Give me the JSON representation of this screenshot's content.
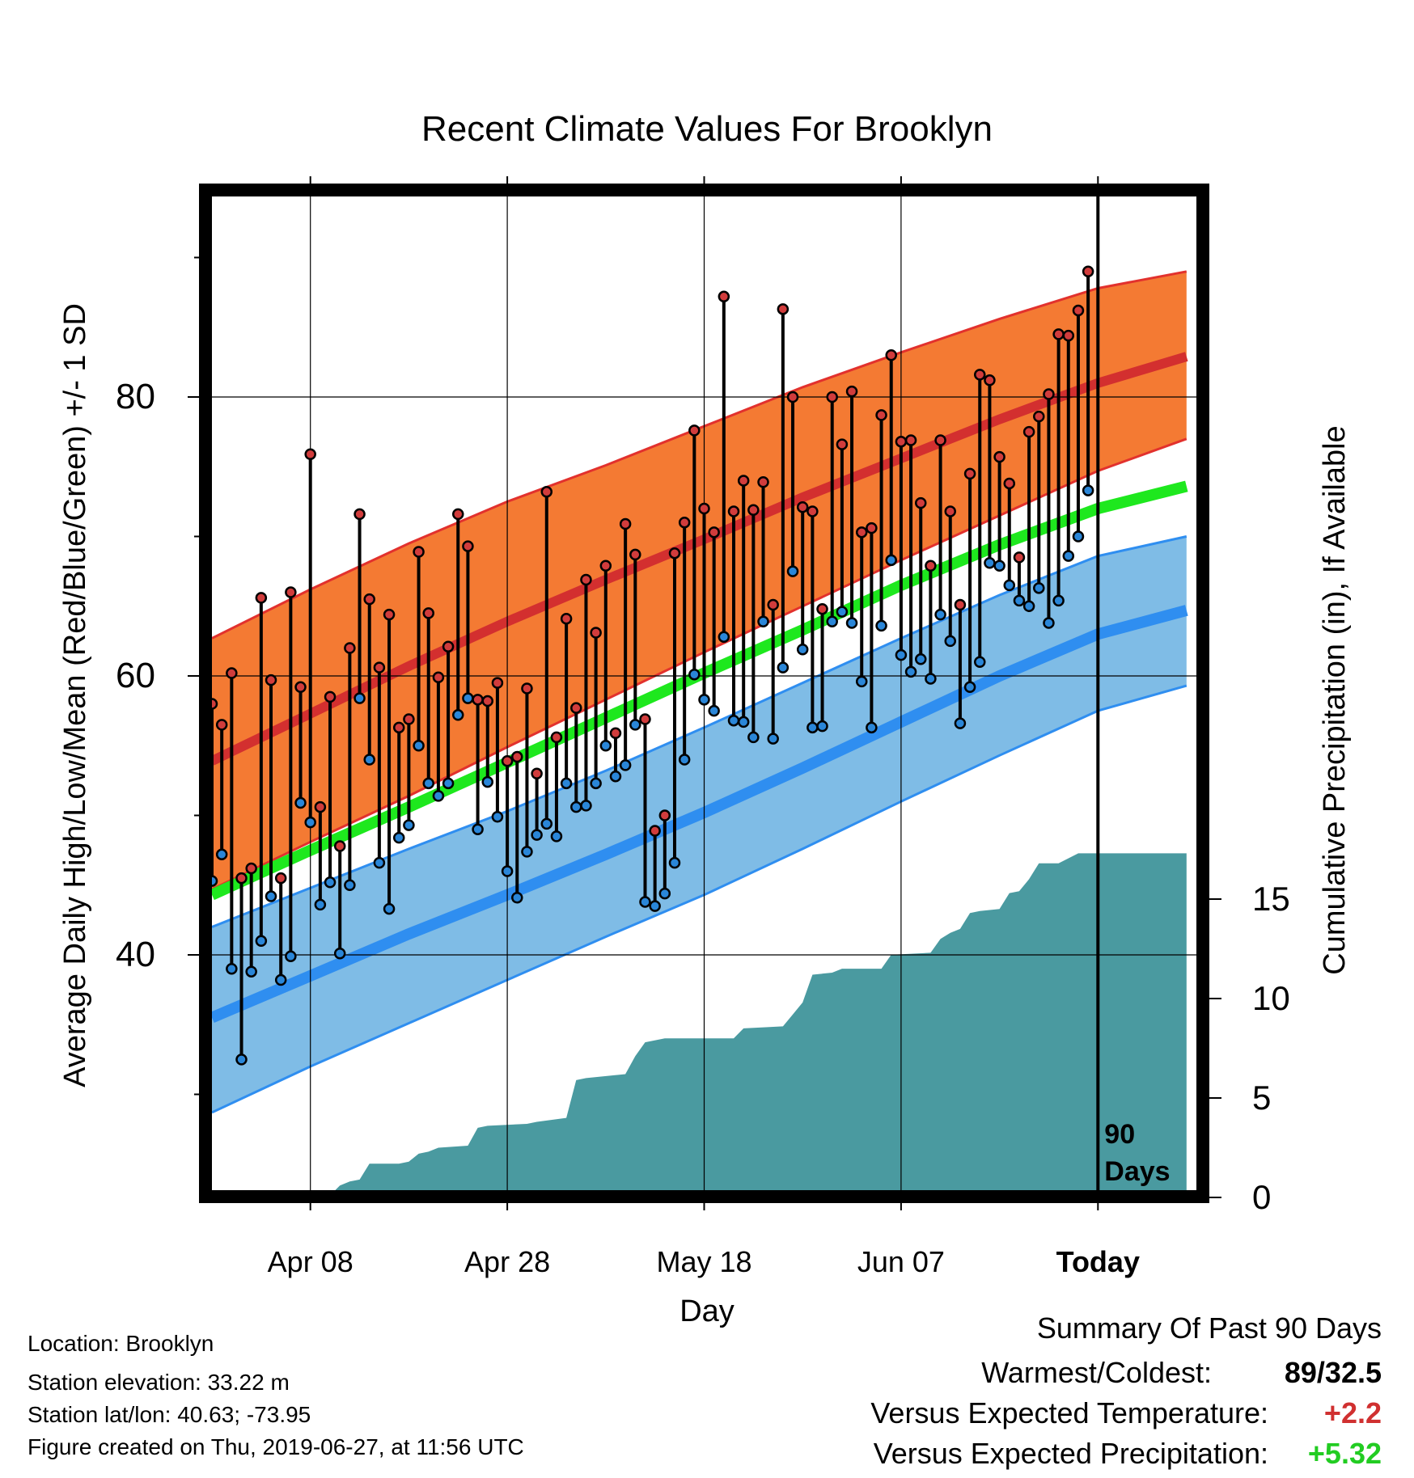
{
  "chart_data": {
    "type": "line",
    "title": "Recent Climate Values For Brooklyn",
    "xlabel": "Day",
    "ylabel": "Average Daily High/Low/Mean (Red/Blue/Green) +/- 1 SD",
    "y2label": "Cumulative Precipitation (in), If Available",
    "x_start_date": "2019-03-29",
    "x_end_date": "2019-06-27",
    "x_ticks": [
      {
        "date": "2019-04-08",
        "label": "Apr 08"
      },
      {
        "date": "2019-04-28",
        "label": "Apr 28"
      },
      {
        "date": "2019-05-18",
        "label": "May 18"
      },
      {
        "date": "2019-06-07",
        "label": "Jun 07"
      },
      {
        "date": "2019-06-27",
        "label": "Today"
      }
    ],
    "ylim": [
      23,
      96
    ],
    "y_ticks": [
      40,
      60,
      80
    ],
    "y2lim": [
      0,
      49.5
    ],
    "y2_ticks": [
      0,
      5,
      10,
      15
    ],
    "marker_label": [
      "90",
      "Days"
    ],
    "colors": {
      "high_band": "#f47a33",
      "high_band_edge": "#e2312d",
      "normal_high": "#d32f2f",
      "low_band": "#7fbce6",
      "low_band_edge": "#2f8ef0",
      "normal_low": "#2f8ef0",
      "normal_mean": "#1ee81e",
      "precip": "#4a9aa0",
      "high_dot": "#d13c3c",
      "low_dot": "#2a86d8"
    },
    "normal_high": [
      {
        "x": "2019-03-29",
        "y": 53.9
      },
      {
        "x": "2019-04-08",
        "y": 57.3
      },
      {
        "x": "2019-04-18",
        "y": 60.7
      },
      {
        "x": "2019-04-28",
        "y": 63.9
      },
      {
        "x": "2019-05-08",
        "y": 66.9
      },
      {
        "x": "2019-05-18",
        "y": 69.8
      },
      {
        "x": "2019-05-28",
        "y": 72.8
      },
      {
        "x": "2019-06-07",
        "y": 75.6
      },
      {
        "x": "2019-06-17",
        "y": 78.4
      },
      {
        "x": "2019-06-27",
        "y": 81.0
      },
      {
        "x": "2019-07-06",
        "y": 82.9
      }
    ],
    "high_sd_upper": [
      {
        "x": "2019-03-29",
        "y": 62.7
      },
      {
        "x": "2019-04-08",
        "y": 66.2
      },
      {
        "x": "2019-04-18",
        "y": 69.5
      },
      {
        "x": "2019-04-28",
        "y": 72.5
      },
      {
        "x": "2019-05-08",
        "y": 75.1
      },
      {
        "x": "2019-05-18",
        "y": 77.9
      },
      {
        "x": "2019-05-28",
        "y": 80.7
      },
      {
        "x": "2019-06-07",
        "y": 83.2
      },
      {
        "x": "2019-06-17",
        "y": 85.6
      },
      {
        "x": "2019-06-27",
        "y": 87.8
      },
      {
        "x": "2019-07-06",
        "y": 89.0
      }
    ],
    "high_sd_lower": [
      {
        "x": "2019-03-29",
        "y": 44.7
      },
      {
        "x": "2019-04-08",
        "y": 48.1
      },
      {
        "x": "2019-04-18",
        "y": 51.4
      },
      {
        "x": "2019-04-28",
        "y": 54.9
      },
      {
        "x": "2019-05-08",
        "y": 58.3
      },
      {
        "x": "2019-05-18",
        "y": 61.7
      },
      {
        "x": "2019-05-28",
        "y": 65.0
      },
      {
        "x": "2019-06-07",
        "y": 68.3
      },
      {
        "x": "2019-06-17",
        "y": 71.5
      },
      {
        "x": "2019-06-27",
        "y": 74.7
      },
      {
        "x": "2019-07-06",
        "y": 77.0
      }
    ],
    "normal_mean": [
      {
        "x": "2019-03-29",
        "y": 44.3
      },
      {
        "x": "2019-04-08",
        "y": 47.5
      },
      {
        "x": "2019-04-18",
        "y": 50.6
      },
      {
        "x": "2019-04-28",
        "y": 53.8
      },
      {
        "x": "2019-05-08",
        "y": 57.0
      },
      {
        "x": "2019-05-18",
        "y": 60.2
      },
      {
        "x": "2019-05-28",
        "y": 63.3
      },
      {
        "x": "2019-06-07",
        "y": 66.5
      },
      {
        "x": "2019-06-17",
        "y": 69.4
      },
      {
        "x": "2019-06-27",
        "y": 72.0
      },
      {
        "x": "2019-07-06",
        "y": 73.6
      }
    ],
    "normal_low": [
      {
        "x": "2019-03-29",
        "y": 35.5
      },
      {
        "x": "2019-04-08",
        "y": 38.5
      },
      {
        "x": "2019-04-18",
        "y": 41.5
      },
      {
        "x": "2019-04-28",
        "y": 44.3
      },
      {
        "x": "2019-05-08",
        "y": 47.2
      },
      {
        "x": "2019-05-18",
        "y": 50.2
      },
      {
        "x": "2019-05-28",
        "y": 53.4
      },
      {
        "x": "2019-06-07",
        "y": 56.7
      },
      {
        "x": "2019-06-17",
        "y": 60.0
      },
      {
        "x": "2019-06-27",
        "y": 63.0
      },
      {
        "x": "2019-07-06",
        "y": 64.7
      }
    ],
    "low_sd_upper": [
      {
        "x": "2019-03-29",
        "y": 42.0
      },
      {
        "x": "2019-04-08",
        "y": 44.8
      },
      {
        "x": "2019-04-18",
        "y": 47.6
      },
      {
        "x": "2019-04-28",
        "y": 50.3
      },
      {
        "x": "2019-05-08",
        "y": 53.2
      },
      {
        "x": "2019-05-18",
        "y": 56.3
      },
      {
        "x": "2019-05-28",
        "y": 59.5
      },
      {
        "x": "2019-06-07",
        "y": 62.7
      },
      {
        "x": "2019-06-17",
        "y": 65.8
      },
      {
        "x": "2019-06-27",
        "y": 68.6
      },
      {
        "x": "2019-07-06",
        "y": 70.0
      }
    ],
    "low_sd_lower": [
      {
        "x": "2019-03-29",
        "y": 28.7
      },
      {
        "x": "2019-04-08",
        "y": 32.0
      },
      {
        "x": "2019-04-18",
        "y": 35.1
      },
      {
        "x": "2019-04-28",
        "y": 38.2
      },
      {
        "x": "2019-05-08",
        "y": 41.3
      },
      {
        "x": "2019-05-18",
        "y": 44.3
      },
      {
        "x": "2019-05-28",
        "y": 47.6
      },
      {
        "x": "2019-06-07",
        "y": 51.0
      },
      {
        "x": "2019-06-17",
        "y": 54.3
      },
      {
        "x": "2019-06-27",
        "y": 57.5
      },
      {
        "x": "2019-07-06",
        "y": 59.3
      }
    ],
    "series": [
      {
        "name": "High",
        "x": [
          "2019-03-29",
          "2019-03-30",
          "2019-03-31",
          "2019-04-01",
          "2019-04-02",
          "2019-04-03",
          "2019-04-04",
          "2019-04-05",
          "2019-04-06",
          "2019-04-07",
          "2019-04-08",
          "2019-04-09",
          "2019-04-10",
          "2019-04-11",
          "2019-04-12",
          "2019-04-13",
          "2019-04-14",
          "2019-04-15",
          "2019-04-16",
          "2019-04-17",
          "2019-04-18",
          "2019-04-19",
          "2019-04-20",
          "2019-04-21",
          "2019-04-22",
          "2019-04-23",
          "2019-04-24",
          "2019-04-25",
          "2019-04-26",
          "2019-04-27",
          "2019-04-28",
          "2019-04-29",
          "2019-04-30",
          "2019-05-01",
          "2019-05-02",
          "2019-05-03",
          "2019-05-04",
          "2019-05-05",
          "2019-05-06",
          "2019-05-07",
          "2019-05-08",
          "2019-05-09",
          "2019-05-10",
          "2019-05-11",
          "2019-05-12",
          "2019-05-13",
          "2019-05-14",
          "2019-05-15",
          "2019-05-16",
          "2019-05-17",
          "2019-05-18",
          "2019-05-19",
          "2019-05-20",
          "2019-05-21",
          "2019-05-22",
          "2019-05-23",
          "2019-05-24",
          "2019-05-25",
          "2019-05-26",
          "2019-05-27",
          "2019-05-28",
          "2019-05-29",
          "2019-05-30",
          "2019-05-31",
          "2019-06-01",
          "2019-06-02",
          "2019-06-03",
          "2019-06-04",
          "2019-06-05",
          "2019-06-06",
          "2019-06-07",
          "2019-06-08",
          "2019-06-09",
          "2019-06-10",
          "2019-06-11",
          "2019-06-12",
          "2019-06-13",
          "2019-06-14",
          "2019-06-15",
          "2019-06-16",
          "2019-06-17",
          "2019-06-18",
          "2019-06-19",
          "2019-06-20",
          "2019-06-21",
          "2019-06-22",
          "2019-06-23",
          "2019-06-24",
          "2019-06-25",
          "2019-06-26"
        ],
        "values": [
          58.0,
          56.5,
          60.2,
          45.5,
          46.2,
          65.6,
          59.7,
          45.5,
          66.0,
          59.2,
          75.9,
          50.6,
          58.5,
          47.8,
          62.0,
          71.6,
          65.5,
          60.6,
          64.4,
          56.3,
          56.9,
          68.9,
          64.5,
          59.9,
          62.1,
          71.6,
          69.3,
          58.3,
          58.2,
          59.5,
          53.9,
          54.2,
          59.1,
          53.0,
          73.2,
          55.6,
          64.1,
          57.7,
          66.9,
          63.1,
          67.9,
          55.9,
          70.9,
          68.7,
          56.9,
          48.9,
          50.0,
          68.8,
          71.0,
          77.6,
          72.0,
          70.3,
          87.2,
          71.8,
          74.0,
          71.9,
          73.9,
          65.1,
          86.3,
          80.0,
          72.1,
          71.8,
          64.8,
          80.0,
          76.6,
          80.4,
          70.3,
          70.6,
          78.7,
          83.0,
          76.8,
          76.9,
          72.4,
          67.9,
          76.9,
          71.8,
          65.1,
          74.5,
          81.6,
          81.2,
          75.7,
          73.8,
          68.5,
          77.5,
          78.6,
          80.2,
          84.5,
          84.4,
          86.2,
          89.0
        ]
      },
      {
        "name": "Low",
        "values": [
          45.3,
          47.2,
          39.0,
          32.5,
          38.8,
          41.0,
          44.2,
          38.2,
          39.9,
          50.9,
          49.5,
          43.6,
          45.2,
          40.1,
          45.0,
          58.4,
          54.0,
          46.6,
          43.3,
          48.4,
          49.3,
          55.0,
          52.3,
          51.4,
          52.3,
          57.2,
          58.4,
          49.0,
          52.4,
          49.9,
          46.0,
          44.1,
          47.4,
          48.6,
          49.4,
          48.5,
          52.3,
          50.6,
          50.7,
          52.3,
          55.0,
          52.8,
          53.6,
          56.5,
          43.8,
          43.5,
          44.4,
          46.6,
          54.0,
          60.1,
          58.3,
          57.5,
          62.8,
          56.8,
          56.7,
          55.6,
          63.9,
          55.5,
          60.6,
          67.5,
          61.9,
          56.3,
          56.4,
          63.9,
          64.6,
          63.8,
          59.6,
          56.3,
          63.6,
          68.3,
          61.5,
          60.3,
          61.2,
          59.8,
          64.4,
          62.5,
          56.6,
          59.2,
          61.0,
          68.1,
          67.9,
          66.5,
          65.4,
          65.0,
          66.3,
          63.8,
          65.4,
          68.6,
          70.0,
          73.3
        ]
      }
    ],
    "precip_cumulative": [
      {
        "x": "2019-03-29",
        "y": 0.0
      },
      {
        "x": "2019-04-06",
        "y": 0.0
      },
      {
        "x": "2019-04-07",
        "y": 0.1
      },
      {
        "x": "2019-04-10",
        "y": 0.1
      },
      {
        "x": "2019-04-11",
        "y": 0.6
      },
      {
        "x": "2019-04-12",
        "y": 0.8
      },
      {
        "x": "2019-04-13",
        "y": 0.9
      },
      {
        "x": "2019-04-14",
        "y": 1.7
      },
      {
        "x": "2019-04-17",
        "y": 1.7
      },
      {
        "x": "2019-04-18",
        "y": 1.8
      },
      {
        "x": "2019-04-19",
        "y": 2.2
      },
      {
        "x": "2019-04-20",
        "y": 2.3
      },
      {
        "x": "2019-04-21",
        "y": 2.5
      },
      {
        "x": "2019-04-24",
        "y": 2.6
      },
      {
        "x": "2019-04-25",
        "y": 3.5
      },
      {
        "x": "2019-04-26",
        "y": 3.6
      },
      {
        "x": "2019-04-30",
        "y": 3.7
      },
      {
        "x": "2019-05-01",
        "y": 3.8
      },
      {
        "x": "2019-05-04",
        "y": 4.0
      },
      {
        "x": "2019-05-05",
        "y": 5.9
      },
      {
        "x": "2019-05-06",
        "y": 6.0
      },
      {
        "x": "2019-05-10",
        "y": 6.2
      },
      {
        "x": "2019-05-11",
        "y": 7.1
      },
      {
        "x": "2019-05-12",
        "y": 7.8
      },
      {
        "x": "2019-05-14",
        "y": 8.0
      },
      {
        "x": "2019-05-21",
        "y": 8.0
      },
      {
        "x": "2019-05-22",
        "y": 8.5
      },
      {
        "x": "2019-05-26",
        "y": 8.6
      },
      {
        "x": "2019-05-27",
        "y": 9.2
      },
      {
        "x": "2019-05-28",
        "y": 9.8
      },
      {
        "x": "2019-05-29",
        "y": 11.2
      },
      {
        "x": "2019-05-31",
        "y": 11.3
      },
      {
        "x": "2019-06-01",
        "y": 11.5
      },
      {
        "x": "2019-06-05",
        "y": 11.5
      },
      {
        "x": "2019-06-06",
        "y": 12.2
      },
      {
        "x": "2019-06-10",
        "y": 12.3
      },
      {
        "x": "2019-06-11",
        "y": 13.0
      },
      {
        "x": "2019-06-12",
        "y": 13.3
      },
      {
        "x": "2019-06-13",
        "y": 13.5
      },
      {
        "x": "2019-06-14",
        "y": 14.3
      },
      {
        "x": "2019-06-15",
        "y": 14.4
      },
      {
        "x": "2019-06-17",
        "y": 14.5
      },
      {
        "x": "2019-06-18",
        "y": 15.3
      },
      {
        "x": "2019-06-19",
        "y": 15.4
      },
      {
        "x": "2019-06-20",
        "y": 16.0
      },
      {
        "x": "2019-06-21",
        "y": 16.8
      },
      {
        "x": "2019-06-23",
        "y": 16.8
      },
      {
        "x": "2019-06-25",
        "y": 17.3
      },
      {
        "x": "2019-07-06",
        "y": 17.3
      }
    ]
  },
  "info": {
    "location": "Location: Brooklyn",
    "elevation": "Station elevation: 33.22 m",
    "latlon": "Station lat/lon: 40.63; -73.95",
    "created": "Figure created on Thu, 2019-06-27, at 11:56 UTC"
  },
  "summary": {
    "title": "Summary Of Past 90 Days",
    "warmest_coldest_label": "Warmest/Coldest:",
    "warmest_coldest_value": "89/32.5",
    "temp_label": "Versus Expected Temperature:",
    "temp_value": "+2.2",
    "precip_label": "Versus Expected Precipitation:",
    "precip_value": "+5.32",
    "temp_color": "#d03030",
    "precip_color": "#22cc22"
  }
}
